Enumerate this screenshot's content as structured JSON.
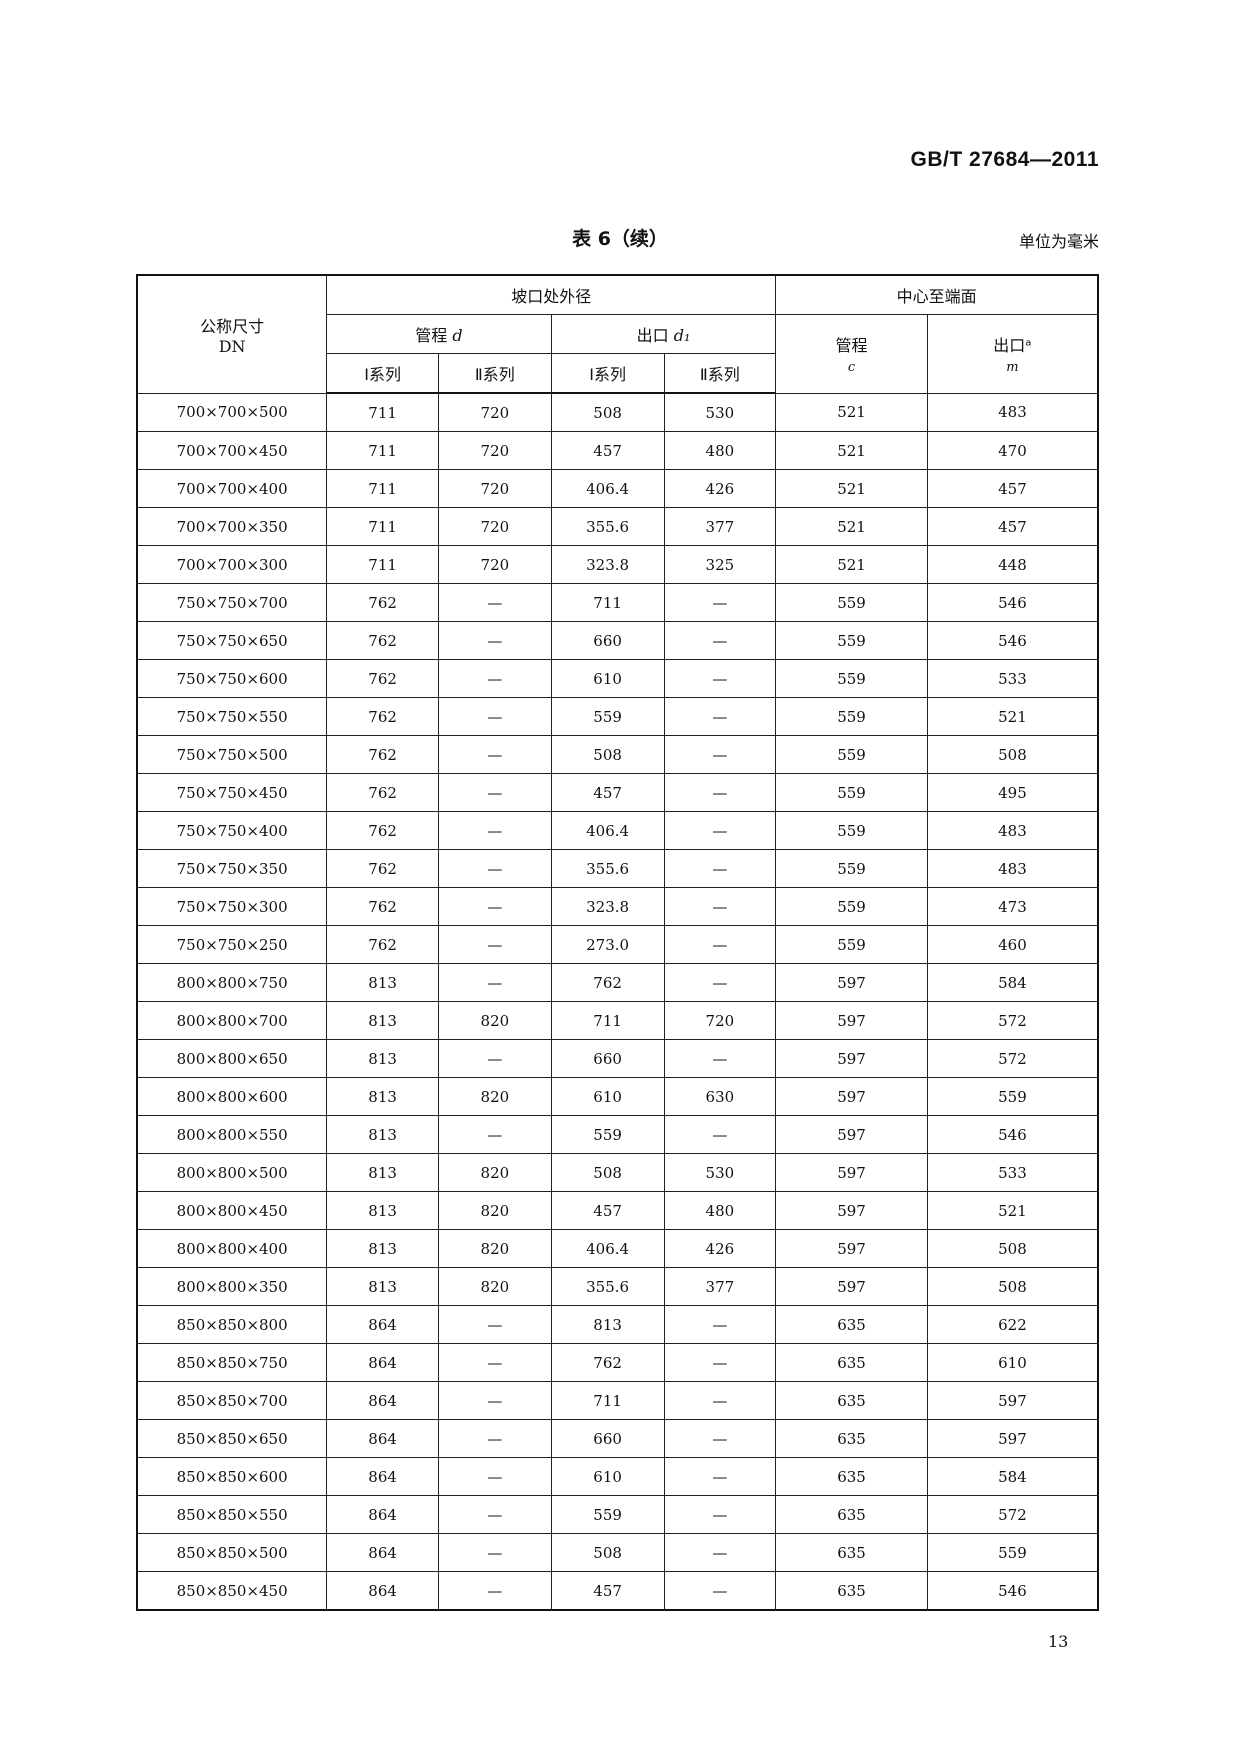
{
  "header": {
    "standard": "GB/T 27684—2011",
    "title": "表 6（续）",
    "unit": "单位为毫米"
  },
  "columns": {
    "dn": "公称尺寸",
    "dn2": "DN",
    "bevel": "坡口处外径",
    "center": "中心至端面",
    "run_d": "管程",
    "run_d_sym": "d",
    "outlet_d": "出口",
    "outlet_d_sym": "d₁",
    "series1": "Ⅰ系列",
    "series2": "Ⅱ系列",
    "run_c": "管程",
    "run_c_sym": "c",
    "outlet_m": "出口ᵃ",
    "outlet_m_sym": "m"
  },
  "rows": [
    [
      "700×700×500",
      "711",
      "720",
      "508",
      "530",
      "521",
      "483"
    ],
    [
      "700×700×450",
      "711",
      "720",
      "457",
      "480",
      "521",
      "470"
    ],
    [
      "700×700×400",
      "711",
      "720",
      "406.4",
      "426",
      "521",
      "457"
    ],
    [
      "700×700×350",
      "711",
      "720",
      "355.6",
      "377",
      "521",
      "457"
    ],
    [
      "700×700×300",
      "711",
      "720",
      "323.8",
      "325",
      "521",
      "448"
    ],
    [
      "750×750×700",
      "762",
      "—",
      "711",
      "—",
      "559",
      "546"
    ],
    [
      "750×750×650",
      "762",
      "—",
      "660",
      "—",
      "559",
      "546"
    ],
    [
      "750×750×600",
      "762",
      "—",
      "610",
      "—",
      "559",
      "533"
    ],
    [
      "750×750×550",
      "762",
      "—",
      "559",
      "—",
      "559",
      "521"
    ],
    [
      "750×750×500",
      "762",
      "—",
      "508",
      "—",
      "559",
      "508"
    ],
    [
      "750×750×450",
      "762",
      "—",
      "457",
      "—",
      "559",
      "495"
    ],
    [
      "750×750×400",
      "762",
      "—",
      "406.4",
      "—",
      "559",
      "483"
    ],
    [
      "750×750×350",
      "762",
      "—",
      "355.6",
      "—",
      "559",
      "483"
    ],
    [
      "750×750×300",
      "762",
      "—",
      "323.8",
      "—",
      "559",
      "473"
    ],
    [
      "750×750×250",
      "762",
      "—",
      "273.0",
      "—",
      "559",
      "460"
    ],
    [
      "800×800×750",
      "813",
      "—",
      "762",
      "—",
      "597",
      "584"
    ],
    [
      "800×800×700",
      "813",
      "820",
      "711",
      "720",
      "597",
      "572"
    ],
    [
      "800×800×650",
      "813",
      "—",
      "660",
      "—",
      "597",
      "572"
    ],
    [
      "800×800×600",
      "813",
      "820",
      "610",
      "630",
      "597",
      "559"
    ],
    [
      "800×800×550",
      "813",
      "—",
      "559",
      "—",
      "597",
      "546"
    ],
    [
      "800×800×500",
      "813",
      "820",
      "508",
      "530",
      "597",
      "533"
    ],
    [
      "800×800×450",
      "813",
      "820",
      "457",
      "480",
      "597",
      "521"
    ],
    [
      "800×800×400",
      "813",
      "820",
      "406.4",
      "426",
      "597",
      "508"
    ],
    [
      "800×800×350",
      "813",
      "820",
      "355.6",
      "377",
      "597",
      "508"
    ],
    [
      "850×850×800",
      "864",
      "—",
      "813",
      "—",
      "635",
      "622"
    ],
    [
      "850×850×750",
      "864",
      "—",
      "762",
      "—",
      "635",
      "610"
    ],
    [
      "850×850×700",
      "864",
      "—",
      "711",
      "—",
      "635",
      "597"
    ],
    [
      "850×850×650",
      "864",
      "—",
      "660",
      "—",
      "635",
      "597"
    ],
    [
      "850×850×600",
      "864",
      "—",
      "610",
      "—",
      "635",
      "584"
    ],
    [
      "850×850×550",
      "864",
      "—",
      "559",
      "—",
      "635",
      "572"
    ],
    [
      "850×850×500",
      "864",
      "—",
      "508",
      "—",
      "635",
      "559"
    ],
    [
      "850×850×450",
      "864",
      "—",
      "457",
      "—",
      "635",
      "546"
    ]
  ],
  "footer": {
    "page": "13"
  }
}
